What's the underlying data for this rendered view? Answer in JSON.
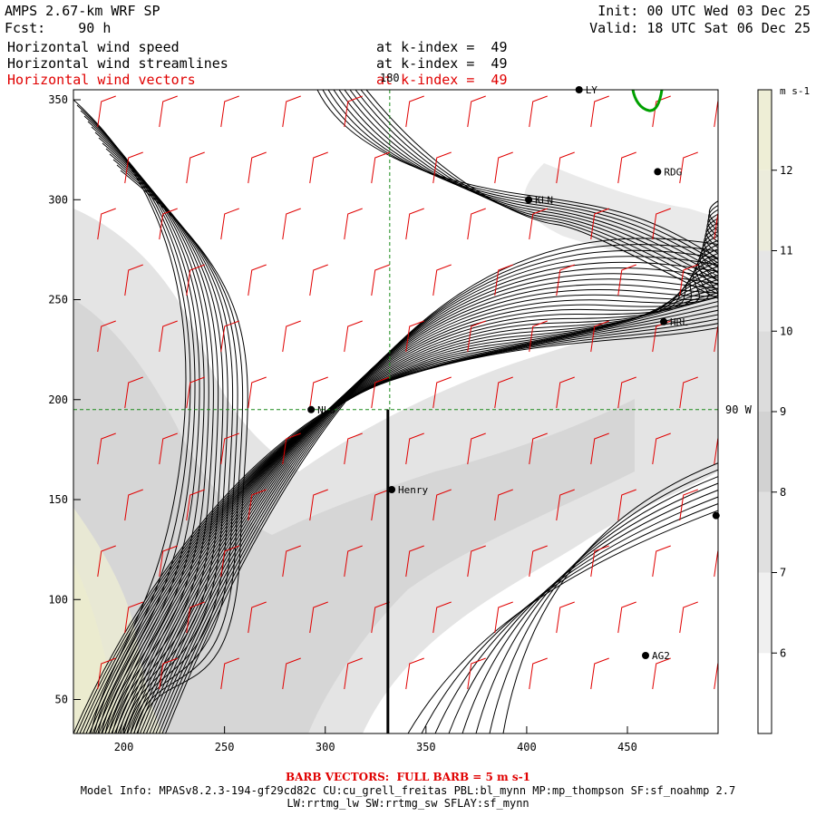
{
  "header": {
    "model": "AMPS 2.67-km WRF SP",
    "init": "Init: 00 UTC Wed 03 Dec 25",
    "fcst": "Fcst:    90 h",
    "valid": "Valid: 18 UTC Sat 06 Dec 25",
    "fields": [
      {
        "name": "Horizontal wind speed",
        "level": "at k-index =  49",
        "color": "#000000"
      },
      {
        "name": "Horizontal wind streamlines",
        "level": "at k-index =  49",
        "color": "#000000"
      },
      {
        "name": "Horizontal wind vectors",
        "level": "at k-index =  49",
        "color": "#e00000"
      }
    ]
  },
  "map": {
    "x_ticks": [
      "200",
      "250",
      "300",
      "350",
      "400",
      "450"
    ],
    "y_ticks": [
      "50",
      "100",
      "150",
      "200",
      "250",
      "300",
      "350"
    ],
    "x_range": [
      175,
      495
    ],
    "y_range": [
      33,
      355
    ],
    "meridian_label": "180",
    "meridian_x": 332,
    "meridian_top_y": 355,
    "meridian_bottom_y": 195,
    "parallel_label": "90 W",
    "parallel_y": 195,
    "stations": [
      {
        "label": "LY",
        "x": 426,
        "y": 355
      },
      {
        "label": "RDG",
        "x": 465,
        "y": 314
      },
      {
        "label": "KLN",
        "x": 401,
        "y": 300
      },
      {
        "label": "HRL",
        "x": 468,
        "y": 239
      },
      {
        "label": "NLO",
        "x": 293,
        "y": 195
      },
      {
        "label": "Henry",
        "x": 333,
        "y": 155
      },
      {
        "label": "",
        "x": 494,
        "y": 142
      },
      {
        "label": "AG2",
        "x": 459,
        "y": 72
      }
    ]
  },
  "colorbar": {
    "units": "m s-1",
    "ticks": [
      "12",
      "11",
      "10",
      "9",
      "8",
      "7",
      "6"
    ],
    "levels": [
      {
        "min": 5,
        "max": 6,
        "color": "#ffffff"
      },
      {
        "min": 6,
        "max": 7,
        "color": "#f0f0f0"
      },
      {
        "min": 7,
        "max": 8,
        "color": "#e0e0e0"
      },
      {
        "min": 8,
        "max": 9,
        "color": "#d2d2d2"
      },
      {
        "min": 9,
        "max": 10,
        "color": "#dcdcdc"
      },
      {
        "min": 10,
        "max": 11,
        "color": "#e6e6e6"
      },
      {
        "min": 11,
        "max": 12,
        "color": "#ececdc"
      },
      {
        "min": 12,
        "max": 13,
        "color": "#eeeed6"
      }
    ]
  },
  "footer": {
    "barb_note": "BARB VECTORS:  FULL BARB = 5 m s-1",
    "model_info": "Model Info: MPASv8.2.3-194-gf29cd82c CU:cu_grell_freitas PBL:bl_mynn MP:mp_thompson SF:sf_noahmp 2.7",
    "model_info2": "LW:rrtmg_lw SW:rrtmg_sw SFLAY:sf_mynn"
  }
}
